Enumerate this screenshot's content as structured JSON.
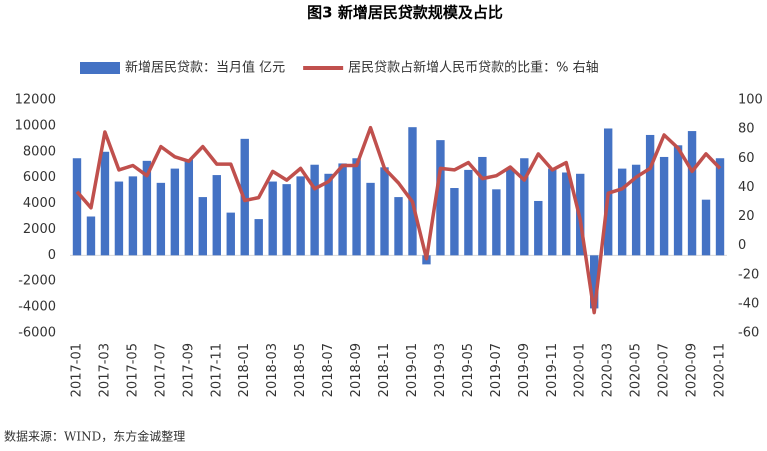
{
  "chart_data": {
    "type": "combo",
    "title": "图3 新增居民贷款规模及占比",
    "note": "数据来源：WIND，东方金诚整理",
    "categories": [
      "2017-01",
      null,
      "2017-03",
      null,
      "2017-05",
      null,
      "2017-07",
      null,
      "2017-09",
      null,
      "2017-11",
      null,
      "2018-01",
      null,
      "2018-03",
      null,
      "2018-05",
      null,
      "2018-07",
      null,
      "2018-09",
      null,
      "2018-11",
      null,
      "2019-01",
      null,
      "2019-03",
      null,
      "2019-05",
      null,
      "2019-07",
      null,
      "2019-09",
      null,
      "2019-11",
      null,
      "2020-01",
      null,
      "2020-03",
      null,
      "2020-05",
      null,
      "2020-07",
      null,
      "2020-09",
      null,
      "2020-11"
    ],
    "series": [
      {
        "name": "新增居民贷款：当月值 亿元",
        "type": "bar",
        "color": "#4472c4",
        "values": [
          7500,
          3000,
          8000,
          5700,
          6100,
          7300,
          5600,
          6700,
          7400,
          4500,
          6200,
          3300,
          9000,
          2800,
          5700,
          5500,
          6100,
          7000,
          6300,
          7100,
          7500,
          5600,
          6800,
          4500,
          9900,
          -700,
          8900,
          5200,
          6600,
          7600,
          5100,
          6700,
          7500,
          4200,
          6700,
          6400,
          6300,
          -4100,
          9800,
          6700,
          7000,
          9300,
          7600,
          8500,
          9600,
          4300,
          7500
        ]
      },
      {
        "name": "居民贷款占新增人民币贷款的比重：% 右轴",
        "type": "line",
        "axis": "y2",
        "color": "#c0504d",
        "values": [
          37,
          26,
          78,
          52,
          55,
          48,
          68,
          61,
          58,
          68,
          56,
          56,
          31,
          33,
          51,
          45,
          53,
          39,
          44,
          55,
          55,
          81,
          53,
          43,
          30,
          -9,
          53,
          52,
          57,
          46,
          48,
          54,
          45,
          63,
          52,
          57,
          18,
          -46,
          36,
          39,
          47,
          53,
          76,
          67,
          51,
          63,
          53
        ]
      }
    ],
    "ylim": [
      -6000,
      12000
    ],
    "yticks": [
      -6000,
      -4000,
      -2000,
      0,
      2000,
      4000,
      6000,
      8000,
      10000,
      12000
    ],
    "y2lim": [
      -60,
      100
    ],
    "y2ticks": [
      -60,
      -40,
      -20,
      0,
      20,
      40,
      60,
      80,
      100
    ],
    "grid": false,
    "legend": "top"
  }
}
